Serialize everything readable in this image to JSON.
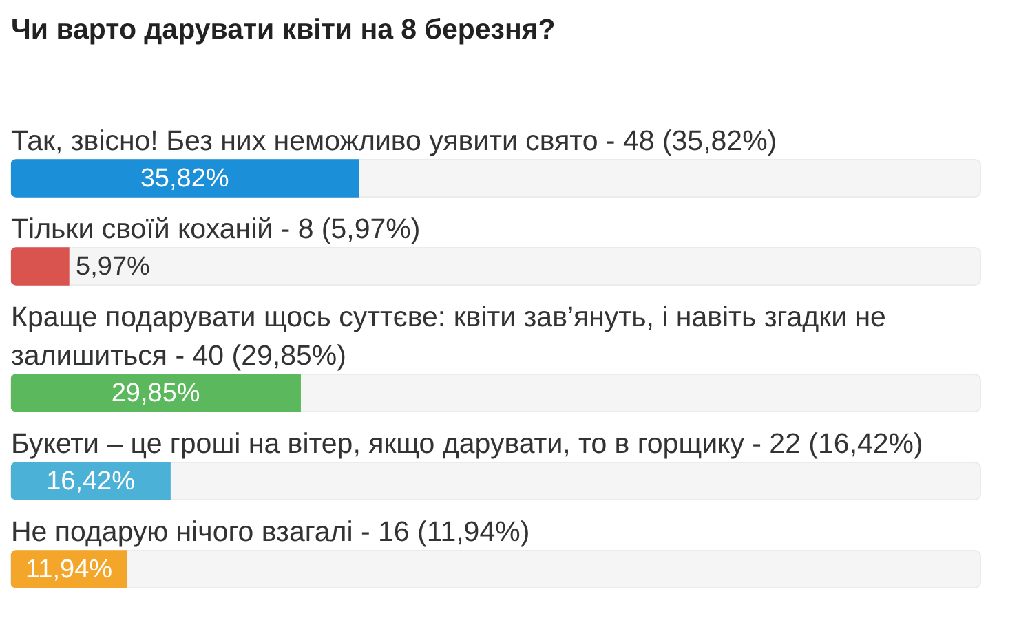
{
  "chart_data": {
    "type": "bar",
    "orientation": "horizontal",
    "title": "Чи варто дарувати квіти на 8 березня?",
    "categories": [
      "Так, звісно! Без них неможливо уявити свято - 48 (35,82%)",
      "Тільки своїй коханій - 8 (5,97%)",
      "Краще подарувати щось суттєве: квіти зав’януть, і навіть згадки не залишиться - 40 (29,85%)",
      "Букети – це гроші на вітер, якщо дарувати, то в горщику - 22 (16,42%)",
      "Не подарую нічого взагалі - 16 (11,94%)"
    ],
    "values": [
      35.82,
      5.97,
      29.85,
      16.42,
      11.94
    ],
    "colors": [
      "#1b8fd8",
      "#d9534f",
      "#5cb85c",
      "#4bb1d6",
      "#f4a62a"
    ],
    "value_labels": [
      "35,82%",
      "5,97%",
      "29,85%",
      "16,42%",
      "11,94%"
    ],
    "xlim": [
      0,
      100
    ],
    "tick_labels": "y"
  }
}
